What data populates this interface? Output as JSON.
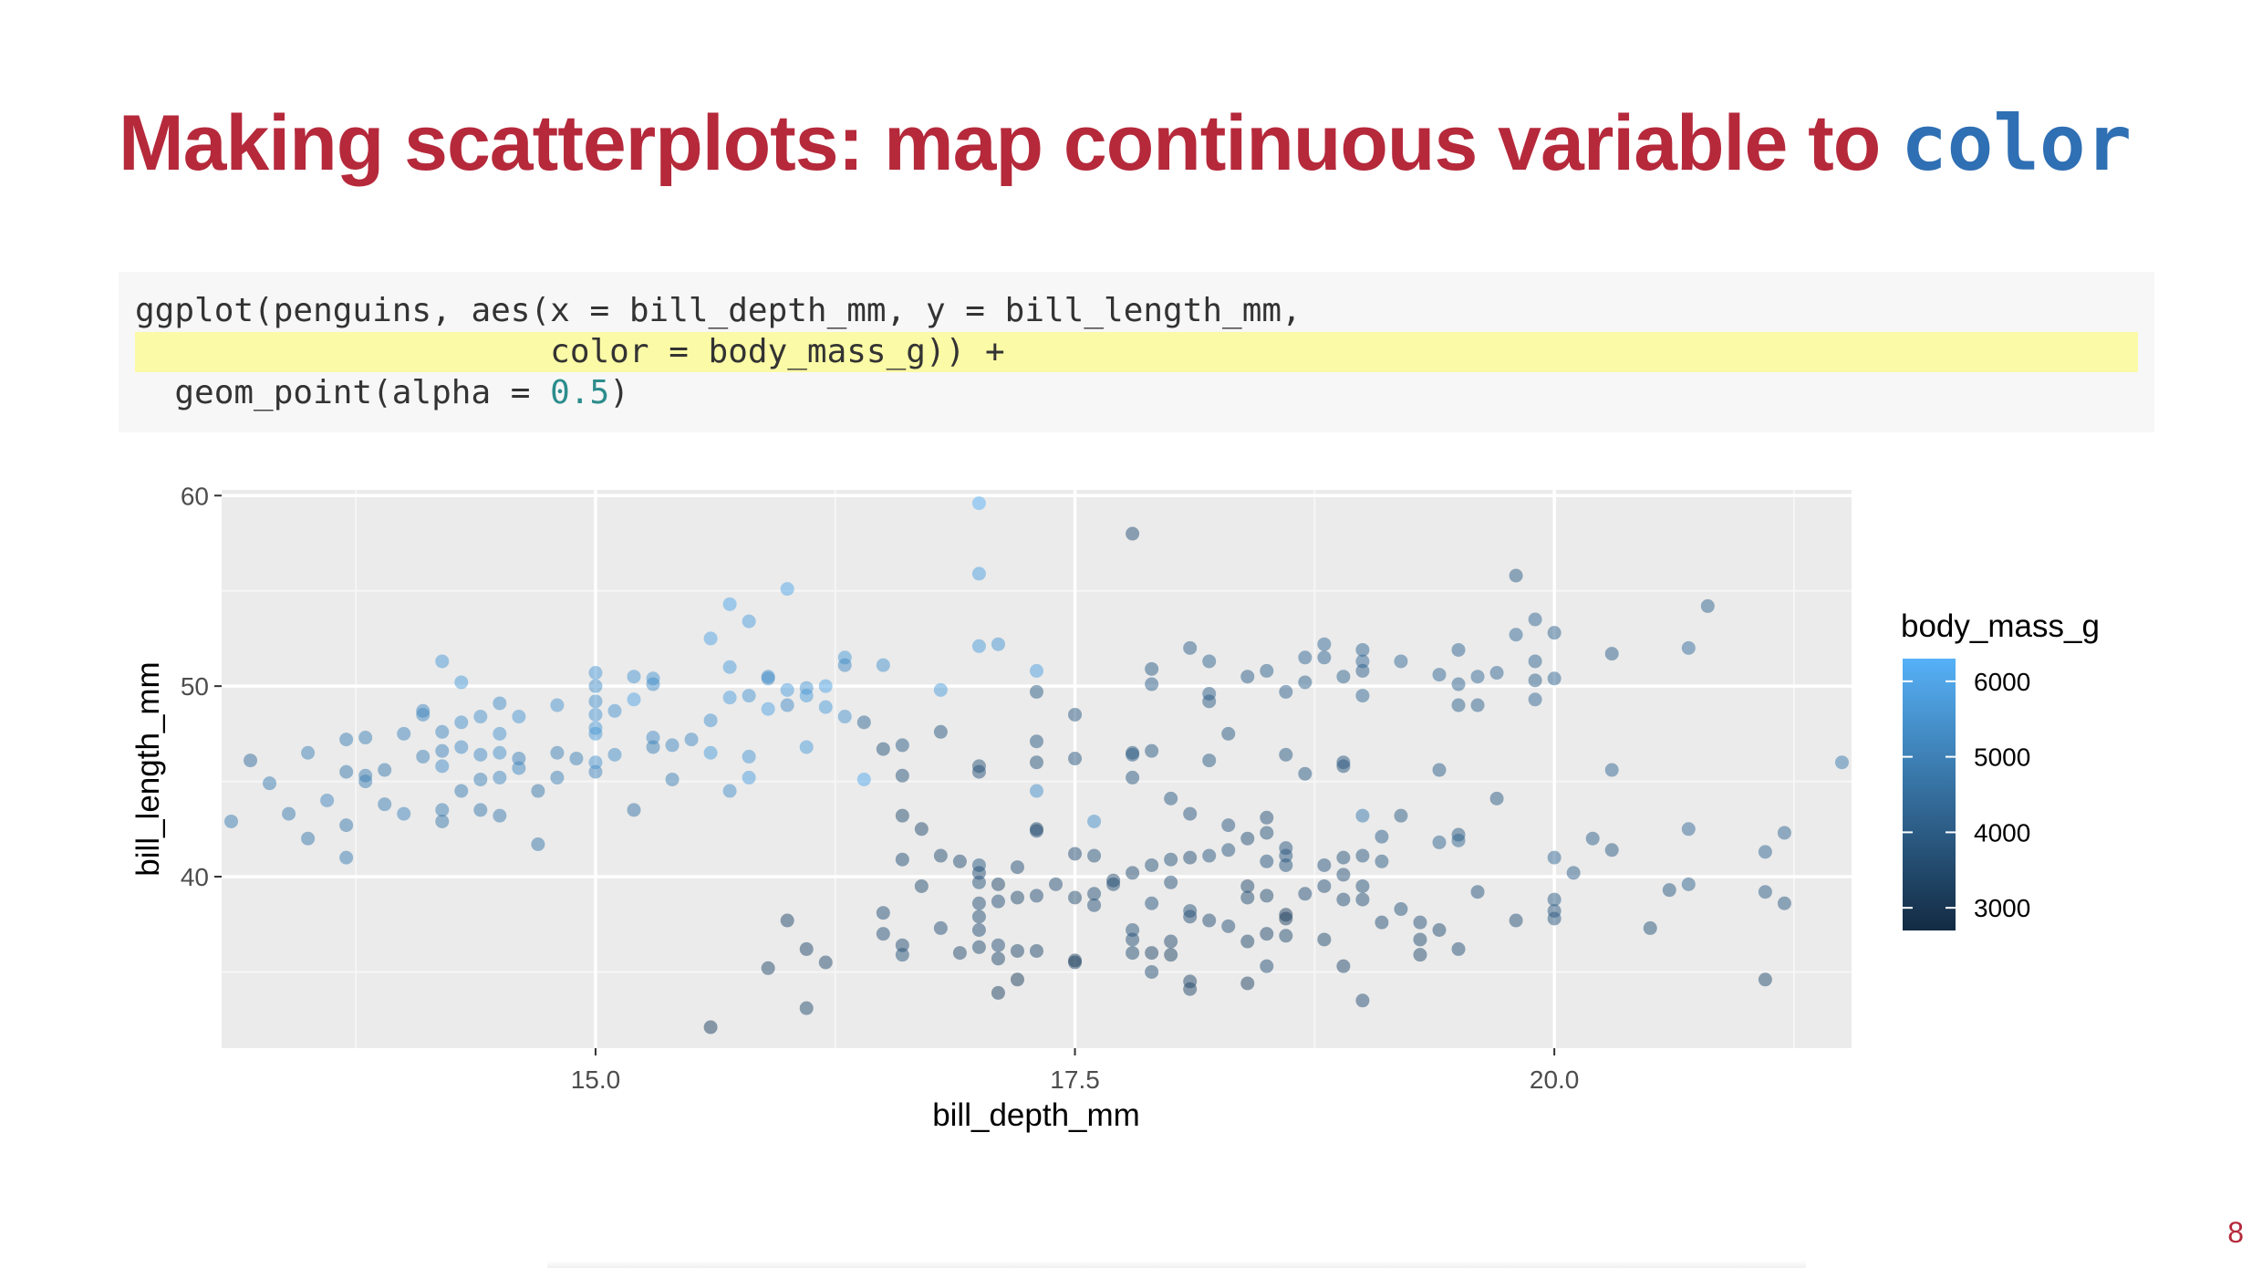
{
  "slide": {
    "title_text": "Making scatterplots: map continuous variable to ",
    "title_code": "color",
    "page_number": "8"
  },
  "code": {
    "line1": "ggplot(penguins, aes(x = bill_depth_mm, y = bill_length_mm,",
    "line2": "                     color = body_mass_g)) +",
    "line3_pre": "  geom_point(alpha = ",
    "line3_num": "0.5",
    "line3_post": ")"
  },
  "colors": {
    "title": "#b5293b",
    "code_accent": "#2f6fb3",
    "highlight": "#fbfaa6",
    "panel": "#ebebeb",
    "low": "#132b43",
    "high": "#56b1f7"
  },
  "chart_data": {
    "type": "scatter",
    "xlabel": "bill_depth_mm",
    "ylabel": "bill_length_mm",
    "xlim": [
      13.05,
      21.55
    ],
    "ylim": [
      31.0,
      60.3
    ],
    "x_ticks": [
      15.0,
      17.5,
      20.0
    ],
    "x_tick_labels": [
      "15.0",
      "17.5",
      "20.0"
    ],
    "y_ticks": [
      40,
      50,
      60
    ],
    "y_tick_labels": [
      "40",
      "50",
      "60"
    ],
    "grid": true,
    "alpha": 0.5,
    "legend": {
      "title": "body_mass_g",
      "position": "right",
      "min": 2700,
      "max": 6300,
      "ticks": [
        3000,
        4000,
        5000,
        6000
      ],
      "tick_labels": [
        "3000",
        "4000",
        "5000",
        "6000"
      ]
    },
    "points": [
      [
        13.1,
        42.9,
        4900
      ],
      [
        13.2,
        46.1,
        4500
      ],
      [
        13.3,
        44.9,
        4900
      ],
      [
        13.4,
        43.3,
        4850
      ],
      [
        13.5,
        42.0,
        4750
      ],
      [
        13.5,
        46.5,
        5000
      ],
      [
        13.6,
        44.0,
        5150
      ],
      [
        13.7,
        47.2,
        4950
      ],
      [
        13.7,
        45.5,
        4800
      ],
      [
        13.7,
        42.7,
        4750
      ],
      [
        13.7,
        41.0,
        4900
      ],
      [
        13.8,
        45.3,
        4900
      ],
      [
        13.8,
        45.0,
        4950
      ],
      [
        13.8,
        47.3,
        5000
      ],
      [
        13.9,
        45.6,
        4850
      ],
      [
        13.9,
        43.8,
        4900
      ],
      [
        14.0,
        47.5,
        5100
      ],
      [
        14.0,
        43.3,
        5100
      ],
      [
        14.1,
        48.7,
        5200
      ],
      [
        14.1,
        48.5,
        5200
      ],
      [
        14.1,
        46.3,
        5000
      ],
      [
        14.2,
        45.8,
        5300
      ],
      [
        14.2,
        47.6,
        5200
      ],
      [
        14.2,
        46.6,
        5100
      ],
      [
        14.2,
        43.5,
        4950
      ],
      [
        14.2,
        42.9,
        4800
      ],
      [
        14.2,
        51.3,
        5600
      ],
      [
        14.3,
        46.8,
        5300
      ],
      [
        14.3,
        44.5,
        4900
      ],
      [
        14.3,
        50.2,
        5700
      ],
      [
        14.3,
        48.1,
        5400
      ],
      [
        14.4,
        46.4,
        5250
      ],
      [
        14.4,
        45.1,
        5000
      ],
      [
        14.4,
        43.5,
        4800
      ],
      [
        14.4,
        48.4,
        5450
      ],
      [
        14.5,
        49.1,
        5350
      ],
      [
        14.5,
        46.5,
        5400
      ],
      [
        14.5,
        45.2,
        5200
      ],
      [
        14.5,
        43.2,
        4850
      ],
      [
        14.5,
        47.5,
        5500
      ],
      [
        14.6,
        46.2,
        5050
      ],
      [
        14.6,
        45.7,
        5200
      ],
      [
        14.6,
        48.4,
        5550
      ],
      [
        14.7,
        44.5,
        4750
      ],
      [
        14.7,
        41.7,
        4700
      ],
      [
        14.8,
        46.5,
        5000
      ],
      [
        14.8,
        45.2,
        5000
      ],
      [
        14.8,
        49.0,
        5500
      ],
      [
        14.9,
        46.2,
        5000
      ],
      [
        15.0,
        45.5,
        5100
      ],
      [
        15.0,
        47.5,
        5600
      ],
      [
        15.0,
        49.2,
        5400
      ],
      [
        15.0,
        48.5,
        5500
      ],
      [
        15.0,
        50.7,
        5600
      ],
      [
        15.0,
        50.0,
        5400
      ],
      [
        15.0,
        47.8,
        5600
      ],
      [
        15.0,
        46.0,
        5500
      ],
      [
        15.1,
        48.7,
        5500
      ],
      [
        15.1,
        46.4,
        5350
      ],
      [
        15.2,
        49.3,
        5900
      ],
      [
        15.2,
        50.5,
        5550
      ],
      [
        15.2,
        43.5,
        4650
      ],
      [
        15.3,
        50.4,
        5550
      ],
      [
        15.3,
        47.3,
        5300
      ],
      [
        15.3,
        46.8,
        5000
      ],
      [
        15.3,
        50.1,
        5350
      ],
      [
        15.4,
        46.9,
        5200
      ],
      [
        15.4,
        45.1,
        5000
      ],
      [
        15.5,
        47.2,
        5250
      ],
      [
        15.6,
        46.5,
        5750
      ],
      [
        15.6,
        48.2,
        5500
      ],
      [
        15.6,
        52.5,
        5900
      ],
      [
        15.7,
        54.3,
        6000
      ],
      [
        15.7,
        49.4,
        5800
      ],
      [
        15.7,
        51.0,
        5750
      ],
      [
        15.7,
        44.5,
        5400
      ],
      [
        15.8,
        53.4,
        5800
      ],
      [
        15.8,
        49.5,
        5550
      ],
      [
        15.8,
        46.3,
        5600
      ],
      [
        15.8,
        45.2,
        5800
      ],
      [
        15.9,
        50.5,
        5400
      ],
      [
        15.9,
        50.4,
        5400
      ],
      [
        15.9,
        48.8,
        5900
      ],
      [
        16.0,
        55.1,
        6000
      ],
      [
        16.0,
        49.8,
        5800
      ],
      [
        16.0,
        49.0,
        5300
      ],
      [
        16.1,
        49.9,
        5600
      ],
      [
        16.1,
        49.5,
        5700
      ],
      [
        16.1,
        46.8,
        5700
      ],
      [
        16.2,
        50.0,
        5950
      ],
      [
        16.2,
        48.9,
        5700
      ],
      [
        16.3,
        51.5,
        5650
      ],
      [
        16.3,
        51.1,
        5250
      ],
      [
        16.3,
        48.4,
        5500
      ],
      [
        16.4,
        45.1,
        6050
      ],
      [
        16.5,
        51.1,
        5500
      ],
      [
        17.0,
        59.6,
        6250
      ],
      [
        17.0,
        55.9,
        5850
      ],
      [
        17.0,
        52.1,
        5700
      ],
      [
        17.1,
        52.2,
        5550
      ],
      [
        17.3,
        50.8,
        5800
      ],
      [
        17.3,
        44.5,
        5400
      ],
      [
        16.8,
        49.8,
        5750
      ],
      [
        17.6,
        42.9,
        5400
      ],
      [
        15.6,
        32.1,
        3300
      ],
      [
        15.9,
        35.2,
        3500
      ],
      [
        16.0,
        37.7,
        3450
      ],
      [
        16.1,
        33.1,
        3600
      ],
      [
        16.1,
        36.2,
        3500
      ],
      [
        16.2,
        35.5,
        3550
      ],
      [
        16.4,
        48.1,
        4300
      ],
      [
        16.5,
        46.7,
        3800
      ],
      [
        16.5,
        38.1,
        3700
      ],
      [
        16.5,
        37.0,
        3750
      ],
      [
        16.6,
        46.9,
        4000
      ],
      [
        16.6,
        45.3,
        3800
      ],
      [
        16.6,
        43.2,
        3600
      ],
      [
        16.6,
        40.9,
        3700
      ],
      [
        16.6,
        36.4,
        3650
      ],
      [
        16.6,
        35.9,
        3800
      ],
      [
        16.7,
        42.5,
        3550
      ],
      [
        16.7,
        39.5,
        3600
      ],
      [
        16.8,
        47.6,
        3900
      ],
      [
        16.8,
        41.1,
        3600
      ],
      [
        16.8,
        37.3,
        3700
      ],
      [
        16.9,
        40.8,
        3650
      ],
      [
        16.9,
        36.0,
        3550
      ],
      [
        17.0,
        45.5,
        3700
      ],
      [
        17.0,
        45.8,
        3800
      ],
      [
        17.0,
        40.6,
        3950
      ],
      [
        17.0,
        40.2,
        3700
      ],
      [
        17.0,
        39.7,
        3800
      ],
      [
        17.0,
        38.6,
        3700
      ],
      [
        17.0,
        37.9,
        3700
      ],
      [
        17.0,
        37.2,
        3650
      ],
      [
        17.0,
        36.3,
        3600
      ],
      [
        17.1,
        39.6,
        3500
      ],
      [
        17.1,
        38.7,
        3700
      ],
      [
        17.1,
        36.4,
        3750
      ],
      [
        17.1,
        35.7,
        3500
      ],
      [
        17.1,
        33.9,
        3300
      ],
      [
        17.2,
        40.5,
        3700
      ],
      [
        17.2,
        38.9,
        3600
      ],
      [
        17.2,
        36.1,
        3500
      ],
      [
        17.2,
        34.6,
        3200
      ],
      [
        17.3,
        49.7,
        4000
      ],
      [
        17.3,
        47.1,
        3950
      ],
      [
        17.3,
        46.0,
        3800
      ],
      [
        17.3,
        42.5,
        3500
      ],
      [
        17.3,
        42.4,
        3650
      ],
      [
        17.3,
        39.0,
        3650
      ],
      [
        17.3,
        36.1,
        3500
      ],
      [
        17.4,
        39.6,
        3750
      ],
      [
        17.5,
        48.5,
        3900
      ],
      [
        17.5,
        46.2,
        3900
      ],
      [
        17.5,
        41.2,
        3650
      ],
      [
        17.5,
        38.9,
        3600
      ],
      [
        17.5,
        35.6,
        3250
      ],
      [
        17.5,
        35.5,
        3300
      ],
      [
        17.6,
        41.1,
        3800
      ],
      [
        17.6,
        39.1,
        3700
      ],
      [
        17.6,
        38.5,
        3700
      ],
      [
        17.7,
        39.8,
        3550
      ],
      [
        17.7,
        39.6,
        3700
      ],
      [
        17.8,
        58.0,
        3700
      ],
      [
        17.8,
        46.5,
        3900
      ],
      [
        17.8,
        46.4,
        4000
      ],
      [
        17.8,
        45.2,
        3900
      ],
      [
        17.8,
        40.2,
        3650
      ],
      [
        17.8,
        36.7,
        3700
      ],
      [
        17.8,
        36.0,
        3600
      ],
      [
        17.8,
        37.2,
        3800
      ],
      [
        17.9,
        50.9,
        4000
      ],
      [
        17.9,
        50.1,
        4100
      ],
      [
        17.9,
        46.6,
        3950
      ],
      [
        17.9,
        40.6,
        3800
      ],
      [
        17.9,
        38.6,
        3850
      ],
      [
        17.9,
        35.0,
        3700
      ],
      [
        17.9,
        36.0,
        3450
      ],
      [
        18.0,
        44.1,
        3950
      ],
      [
        18.0,
        40.9,
        3800
      ],
      [
        18.0,
        39.7,
        3750
      ],
      [
        18.0,
        36.6,
        3550
      ],
      [
        18.0,
        35.9,
        3400
      ],
      [
        18.1,
        52.0,
        4100
      ],
      [
        18.1,
        43.3,
        3900
      ],
      [
        18.1,
        41.0,
        3700
      ],
      [
        18.1,
        37.9,
        3700
      ],
      [
        18.1,
        34.5,
        3450
      ],
      [
        18.1,
        34.1,
        3450
      ],
      [
        18.1,
        38.2,
        3800
      ],
      [
        18.2,
        51.3,
        4200
      ],
      [
        18.2,
        49.6,
        4100
      ],
      [
        18.2,
        49.2,
        4000
      ],
      [
        18.2,
        46.1,
        4000
      ],
      [
        18.2,
        41.1,
        3900
      ],
      [
        18.2,
        37.7,
        3650
      ],
      [
        18.3,
        47.5,
        3950
      ],
      [
        18.3,
        42.7,
        3900
      ],
      [
        18.3,
        41.4,
        3900
      ],
      [
        18.3,
        37.4,
        3750
      ],
      [
        18.4,
        50.5,
        4050
      ],
      [
        18.4,
        42.0,
        3700
      ],
      [
        18.4,
        39.5,
        3550
      ],
      [
        18.4,
        38.9,
        3600
      ],
      [
        18.4,
        36.6,
        3500
      ],
      [
        18.4,
        34.4,
        3350
      ],
      [
        18.5,
        50.8,
        4150
      ],
      [
        18.5,
        43.1,
        3750
      ],
      [
        18.5,
        42.3,
        3800
      ],
      [
        18.5,
        40.8,
        3850
      ],
      [
        18.5,
        39.0,
        3600
      ],
      [
        18.5,
        37.0,
        3500
      ],
      [
        18.5,
        35.3,
        3700
      ],
      [
        18.6,
        49.7,
        4100
      ],
      [
        18.6,
        46.4,
        3950
      ],
      [
        18.6,
        41.5,
        3900
      ],
      [
        18.6,
        41.1,
        3900
      ],
      [
        18.6,
        40.6,
        3850
      ],
      [
        18.6,
        38.0,
        3250
      ],
      [
        18.6,
        37.8,
        3300
      ],
      [
        18.6,
        36.9,
        3600
      ],
      [
        18.7,
        51.5,
        4300
      ],
      [
        18.7,
        50.2,
        4150
      ],
      [
        18.7,
        45.4,
        3950
      ],
      [
        18.7,
        39.1,
        3700
      ],
      [
        18.8,
        52.2,
        4400
      ],
      [
        18.8,
        51.5,
        4250
      ],
      [
        18.8,
        40.6,
        3850
      ],
      [
        18.8,
        39.5,
        3750
      ],
      [
        18.8,
        36.7,
        3600
      ],
      [
        18.9,
        50.5,
        4200
      ],
      [
        18.9,
        46.0,
        3900
      ],
      [
        18.9,
        45.8,
        3850
      ],
      [
        18.9,
        41.0,
        3800
      ],
      [
        18.9,
        40.1,
        3750
      ],
      [
        18.9,
        38.8,
        3700
      ],
      [
        18.9,
        35.3,
        3500
      ],
      [
        19.0,
        51.9,
        4250
      ],
      [
        19.0,
        51.3,
        4350
      ],
      [
        19.0,
        50.8,
        4100
      ],
      [
        19.0,
        49.5,
        4300
      ],
      [
        19.0,
        43.2,
        4800
      ],
      [
        19.0,
        41.1,
        3900
      ],
      [
        19.0,
        39.5,
        3800
      ],
      [
        19.0,
        38.8,
        3750
      ],
      [
        19.0,
        33.5,
        3650
      ],
      [
        19.1,
        42.1,
        4050
      ],
      [
        19.1,
        40.8,
        4000
      ],
      [
        19.1,
        37.6,
        3700
      ],
      [
        19.2,
        51.3,
        4400
      ],
      [
        19.2,
        43.2,
        4000
      ],
      [
        19.2,
        38.3,
        3800
      ],
      [
        19.3,
        37.6,
        3750
      ],
      [
        19.3,
        36.7,
        3600
      ],
      [
        19.3,
        35.9,
        3550
      ],
      [
        19.4,
        50.6,
        4300
      ],
      [
        19.4,
        45.6,
        4050
      ],
      [
        19.4,
        41.8,
        4200
      ],
      [
        19.4,
        37.2,
        3600
      ],
      [
        19.5,
        51.9,
        4250
      ],
      [
        19.5,
        50.1,
        4250
      ],
      [
        19.5,
        49.0,
        4150
      ],
      [
        19.5,
        42.2,
        3950
      ],
      [
        19.5,
        41.9,
        4200
      ],
      [
        19.5,
        36.2,
        3700
      ],
      [
        19.6,
        50.5,
        4400
      ],
      [
        19.6,
        49.0,
        4150
      ],
      [
        19.6,
        39.2,
        3850
      ],
      [
        19.7,
        50.7,
        4300
      ],
      [
        19.7,
        44.1,
        4000
      ],
      [
        19.8,
        55.8,
        4000
      ],
      [
        19.8,
        52.7,
        4350
      ],
      [
        19.8,
        37.7,
        3700
      ],
      [
        19.9,
        53.5,
        4300
      ],
      [
        19.9,
        51.3,
        4250
      ],
      [
        19.9,
        50.3,
        4150
      ],
      [
        19.9,
        49.3,
        4300
      ],
      [
        20.0,
        52.8,
        4200
      ],
      [
        20.0,
        50.4,
        4300
      ],
      [
        20.0,
        41.0,
        4300
      ],
      [
        20.0,
        38.8,
        4000
      ],
      [
        20.0,
        38.2,
        3900
      ],
      [
        20.0,
        37.8,
        3900
      ],
      [
        20.1,
        40.2,
        4100
      ],
      [
        20.2,
        42.0,
        4100
      ],
      [
        20.3,
        51.7,
        4050
      ],
      [
        20.3,
        45.6,
        4300
      ],
      [
        20.3,
        41.4,
        4000
      ],
      [
        20.5,
        37.3,
        3800
      ],
      [
        20.6,
        39.3,
        3950
      ],
      [
        20.7,
        52.0,
        4500
      ],
      [
        20.7,
        42.5,
        4400
      ],
      [
        20.7,
        39.6,
        4200
      ],
      [
        20.8,
        54.2,
        4200
      ],
      [
        21.1,
        41.3,
        4250
      ],
      [
        21.1,
        39.2,
        4000
      ],
      [
        21.1,
        34.6,
        3600
      ],
      [
        21.2,
        42.3,
        4300
      ],
      [
        21.2,
        38.6,
        3950
      ],
      [
        21.5,
        46.0,
        4800
      ]
    ]
  }
}
